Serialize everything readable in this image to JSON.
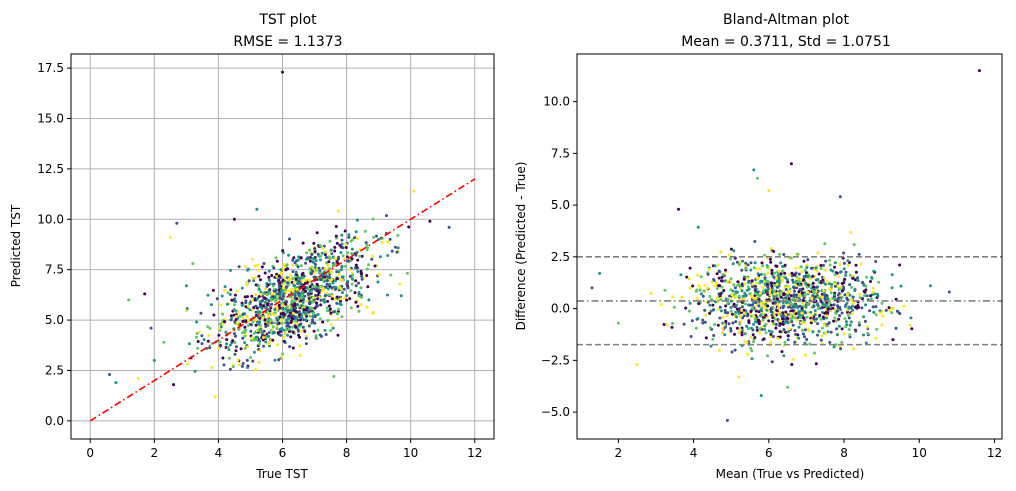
{
  "chart_data": [
    {
      "type": "scatter",
      "title_line1": "TST plot",
      "title_line2": "RMSE = 1.1373",
      "xlabel": "True TST",
      "ylabel": "Predicted TST",
      "xlim": [
        -0.6,
        12.6
      ],
      "ylim": [
        -0.9,
        18.2
      ],
      "xticks": [
        0,
        2,
        4,
        6,
        8,
        10,
        12
      ],
      "yticks": [
        0.0,
        2.5,
        5.0,
        7.5,
        10.0,
        12.5,
        15.0,
        17.5
      ],
      "ytick_labels": [
        "0.0",
        "2.5",
        "5.0",
        "7.5",
        "10.0",
        "12.5",
        "15.0",
        "17.5"
      ],
      "grid": true,
      "reference_line": {
        "x": [
          0,
          12
        ],
        "y": [
          0,
          12
        ],
        "color": "#ff0000",
        "style": "dash-dot"
      },
      "points": [
        [
          6.0,
          17.3
        ],
        [
          0.6,
          2.3
        ],
        [
          0.8,
          1.9
        ],
        [
          1.2,
          6.0
        ],
        [
          1.5,
          2.1
        ],
        [
          1.7,
          6.3
        ],
        [
          1.9,
          4.6
        ],
        [
          2.0,
          3.0
        ],
        [
          2.3,
          3.9
        ],
        [
          2.5,
          9.1
        ],
        [
          2.6,
          1.8
        ],
        [
          2.7,
          9.8
        ],
        [
          3.0,
          6.7
        ],
        [
          3.2,
          7.8
        ],
        [
          3.9,
          1.2
        ],
        [
          4.5,
          10.0
        ],
        [
          4.9,
          3.0
        ],
        [
          5.2,
          10.5
        ],
        [
          7.6,
          2.2
        ],
        [
          10.1,
          11.4
        ],
        [
          10.6,
          9.9
        ],
        [
          11.2,
          9.6
        ],
        [
          9.0,
          9.0
        ],
        [
          9.6,
          9.2
        ]
      ],
      "point_cloud": {
        "n": 1300,
        "x_mean": 6.3,
        "x_std": 1.25,
        "slope": 0.7,
        "intercept": 1.6,
        "noise_std": 1.1
      }
    },
    {
      "type": "scatter",
      "title_line1": "Bland-Altman plot",
      "title_line2": "Mean = 0.3711, Std = 1.0751",
      "xlabel": "Mean (True vs Predicted)",
      "ylabel": "Difference (Predicted - True)",
      "xlim": [
        0.9,
        12.2
      ],
      "ylim": [
        -6.3,
        12.3
      ],
      "xticks": [
        2,
        4,
        6,
        8,
        10,
        12
      ],
      "yticks": [
        -5.0,
        -2.5,
        0.0,
        2.5,
        5.0,
        7.5,
        10.0
      ],
      "ytick_labels": [
        "−5.0",
        "−2.5",
        "0.0",
        "2.5",
        "5.0",
        "7.5",
        "10.0"
      ],
      "grid": false,
      "hlines": [
        {
          "y": 2.5,
          "style": "dashed",
          "color": "#808080"
        },
        {
          "y": 0.37,
          "style": "dash-dot",
          "color": "#808080"
        },
        {
          "y": -1.74,
          "style": "dashed",
          "color": "#808080"
        }
      ],
      "points": [
        [
          11.6,
          11.5
        ],
        [
          1.3,
          1.0
        ],
        [
          1.5,
          1.7
        ],
        [
          2.0,
          -0.7
        ],
        [
          2.5,
          -2.7
        ],
        [
          3.6,
          4.8
        ],
        [
          4.9,
          -5.4
        ],
        [
          5.6,
          6.7
        ],
        [
          5.7,
          6.3
        ],
        [
          6.0,
          5.7
        ],
        [
          6.6,
          7.0
        ],
        [
          7.9,
          5.4
        ],
        [
          5.8,
          -4.2
        ],
        [
          6.5,
          -3.8
        ],
        [
          5.2,
          -3.3
        ],
        [
          9.3,
          -1.5
        ],
        [
          10.8,
          0.8
        ],
        [
          10.3,
          1.1
        ]
      ],
      "point_cloud": {
        "n": 1300,
        "x_mean": 6.5,
        "x_std": 1.2,
        "y_mean": 0.37,
        "y_std": 1.0
      }
    }
  ],
  "colors": {
    "palette": [
      "#440154",
      "#3b528b",
      "#21918c",
      "#5ec962",
      "#fde725"
    ],
    "grid": "#b0b0b0",
    "axis": "#000000"
  }
}
